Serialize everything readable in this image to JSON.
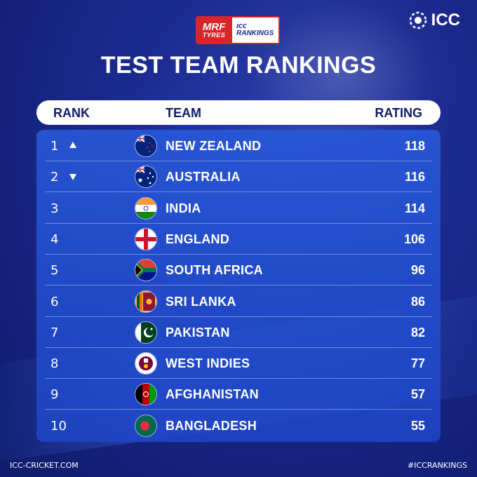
{
  "brand": {
    "sponsor_line1": "MRF",
    "sponsor_line2": "TYRES",
    "rankings_small": "ICC",
    "rankings_big": "RANKINGS",
    "icc_logo_text": "ICC"
  },
  "title": "TEST TEAM RANKINGS",
  "headers": {
    "rank": "RANK",
    "team": "TEAM",
    "rating": "RATING"
  },
  "rows": [
    {
      "rank": "1",
      "trend": "up",
      "team": "NEW ZEALAND",
      "rating": "118",
      "flag": "new-zealand"
    },
    {
      "rank": "2",
      "trend": "down",
      "team": "AUSTRALIA",
      "rating": "116",
      "flag": "australia"
    },
    {
      "rank": "3",
      "trend": "",
      "team": "INDIA",
      "rating": "114",
      "flag": "india"
    },
    {
      "rank": "4",
      "trend": "",
      "team": "ENGLAND",
      "rating": "106",
      "flag": "england"
    },
    {
      "rank": "5",
      "trend": "",
      "team": "SOUTH AFRICA",
      "rating": "96",
      "flag": "south-africa"
    },
    {
      "rank": "6",
      "trend": "",
      "team": "SRI LANKA",
      "rating": "86",
      "flag": "sri-lanka"
    },
    {
      "rank": "7",
      "trend": "",
      "team": "PAKISTAN",
      "rating": "82",
      "flag": "pakistan"
    },
    {
      "rank": "8",
      "trend": "",
      "team": "WEST INDIES",
      "rating": "77",
      "flag": "west-indies"
    },
    {
      "rank": "9",
      "trend": "",
      "team": "AFGHANISTAN",
      "rating": "57",
      "flag": "afghanistan"
    },
    {
      "rank": "10",
      "trend": "",
      "team": "BANGLADESH",
      "rating": "55",
      "flag": "bangladesh"
    }
  ],
  "footer": {
    "left": "ICC-CRICKET.COM",
    "right": "#ICCRANKINGS"
  },
  "colors": {
    "background": "#1b2a8f",
    "panel": "#2a5ad8",
    "sponsor_red": "#d8242b"
  }
}
